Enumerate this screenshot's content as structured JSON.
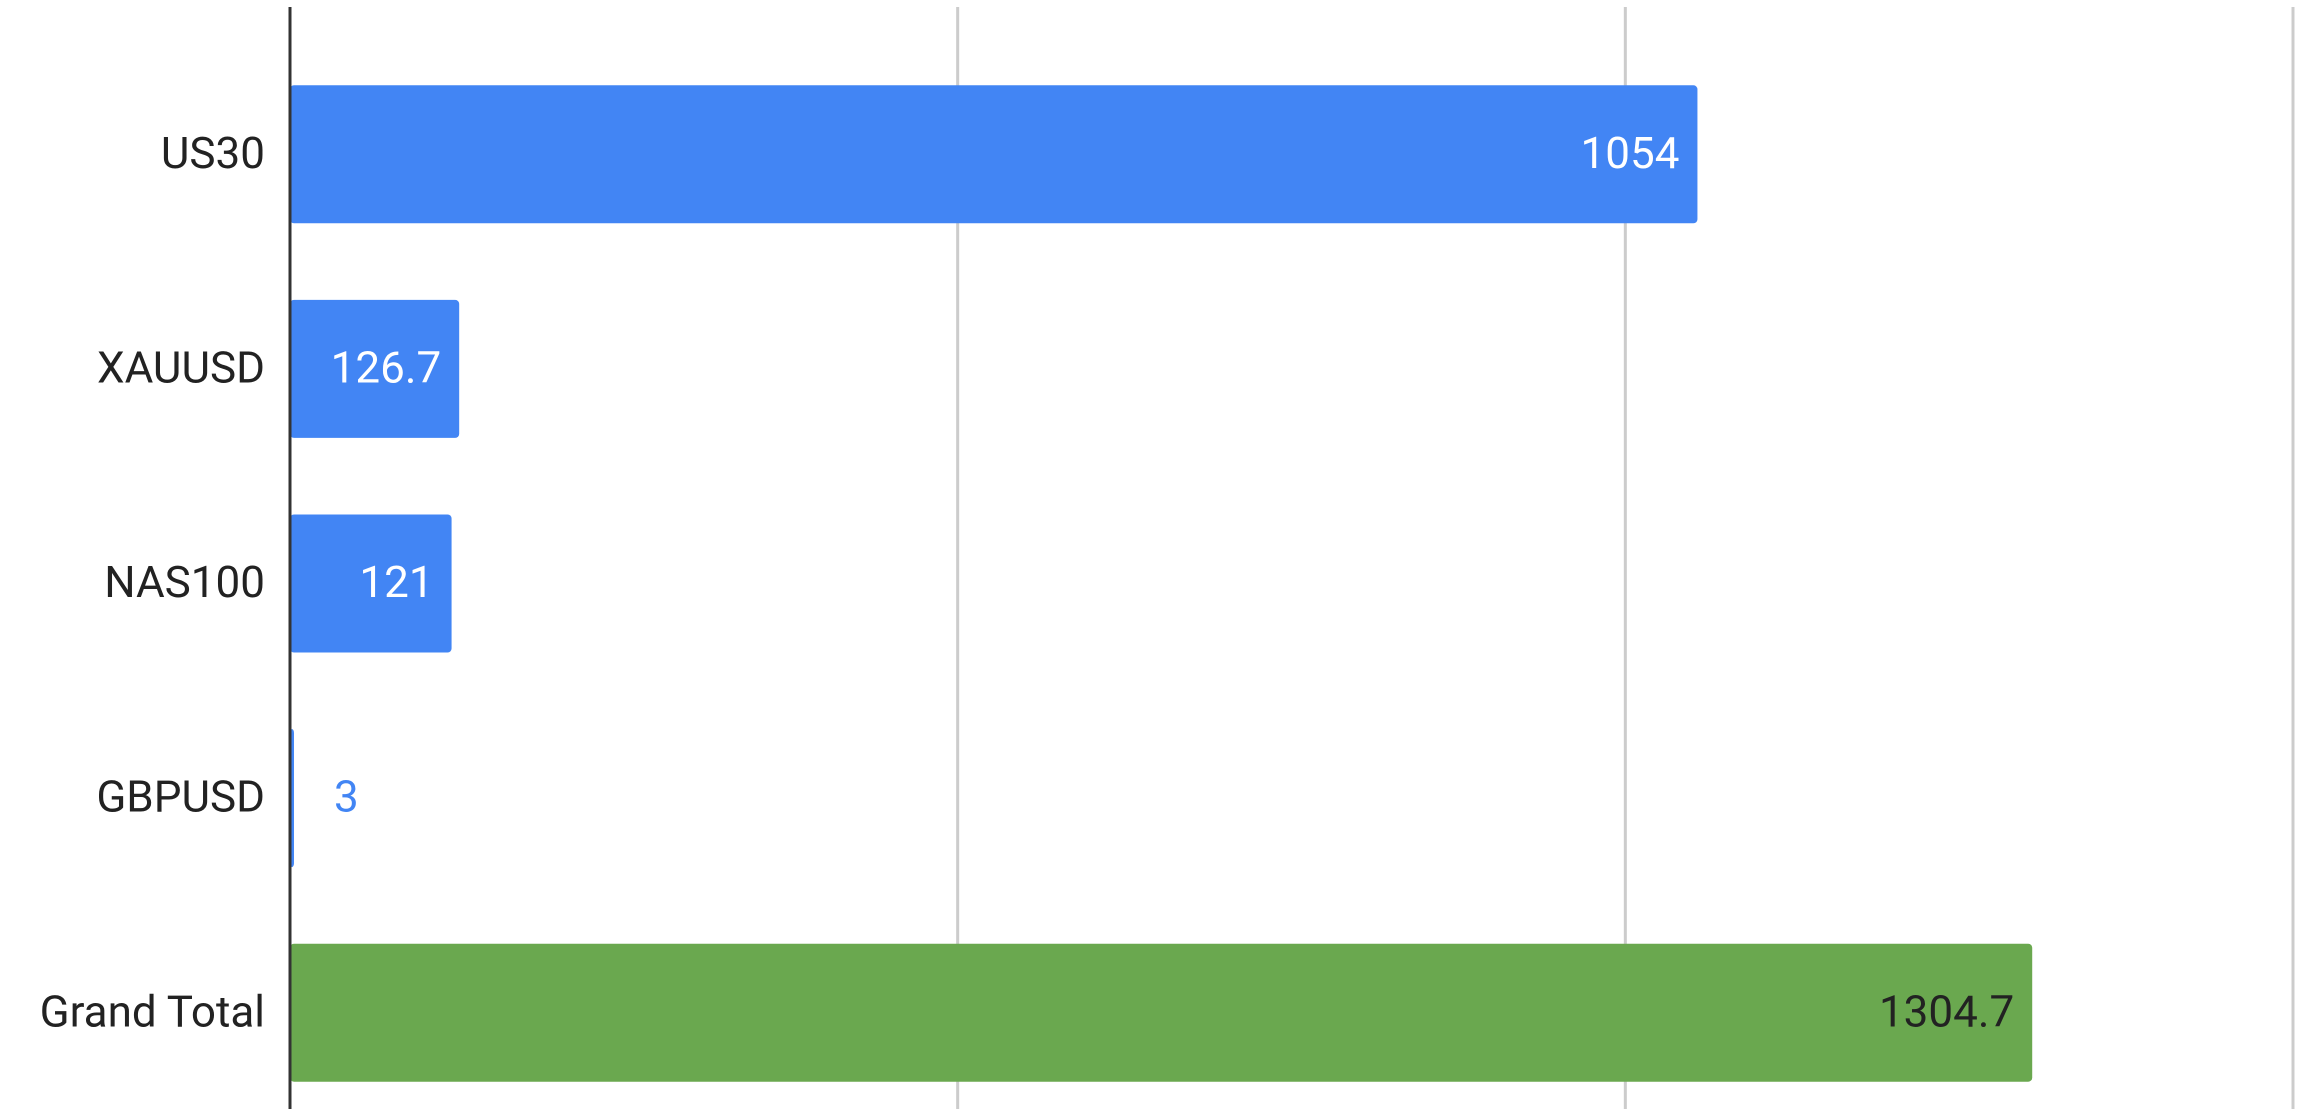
{
  "chart_data": {
    "type": "bar",
    "orientation": "horizontal",
    "categories": [
      "US30",
      "XAUUSD",
      "NAS100",
      "GBPUSD",
      "Grand Total"
    ],
    "values": [
      1054,
      126.7,
      121,
      3,
      1304.7
    ],
    "colors": [
      "#4285f4",
      "#4285f4",
      "#4285f4",
      "#4285f4",
      "#6aa84f"
    ],
    "xlim": [
      0,
      1500
    ],
    "xticks": [
      0,
      500,
      1000,
      1500
    ],
    "grid": true
  }
}
